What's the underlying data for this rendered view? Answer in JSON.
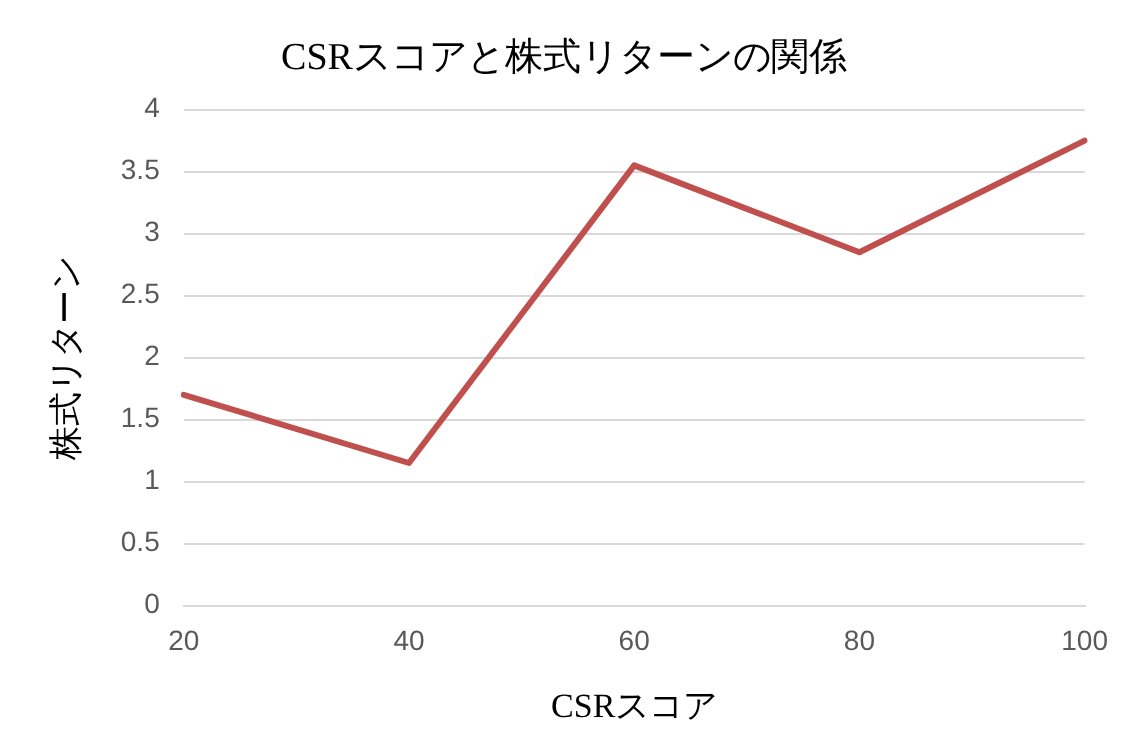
{
  "chart_data": {
    "type": "line",
    "title": "CSRスコアと株式リターンの関係",
    "xlabel": "CSRスコア",
    "ylabel": "株式リターン",
    "categories": [
      "20",
      "40",
      "60",
      "80",
      "100"
    ],
    "series": [
      {
        "color": "#c0504d",
        "values": [
          1.7,
          1.15,
          3.55,
          2.85,
          3.75
        ]
      }
    ],
    "ylim": [
      0,
      4
    ],
    "yticks": [
      0,
      0.5,
      1,
      1.5,
      2,
      2.5,
      3,
      3.5,
      4
    ],
    "grid": "y",
    "legend": false,
    "marker": "none",
    "line_style": "solid"
  }
}
